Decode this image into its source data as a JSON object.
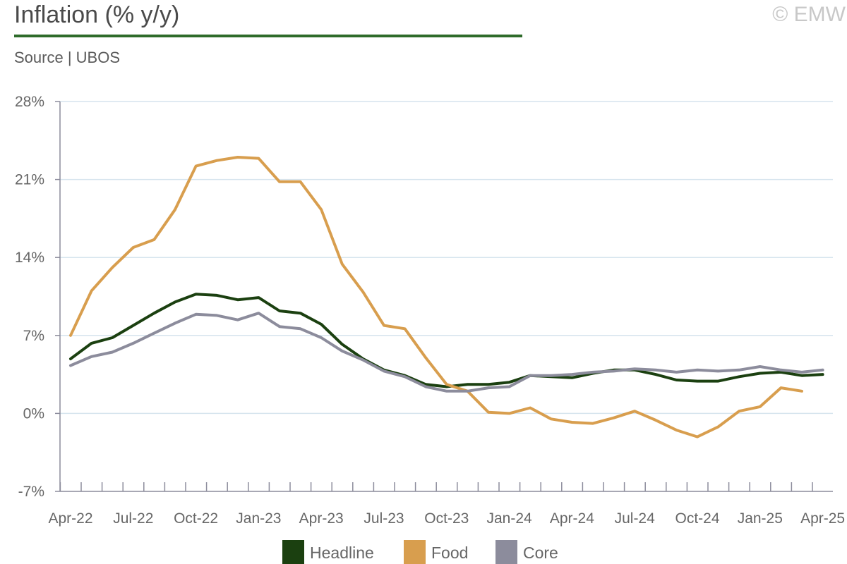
{
  "header": {
    "title": "Inflation (% y/y)",
    "source": "Source | UBOS",
    "copyright": "© EMW"
  },
  "colors": {
    "title_rule": "#2e6b2a",
    "axis": "#8c8c9c",
    "grid": "#d6e4ee"
  },
  "chart_data": {
    "type": "line",
    "title": "Inflation (% y/y)",
    "xlabel": "",
    "ylabel": "",
    "ylim": [
      -7,
      28
    ],
    "yticks": [
      "28%",
      "21%",
      "14%",
      "7%",
      "0%",
      "-7%"
    ],
    "ytick_values": [
      28,
      21,
      14,
      7,
      0,
      -7
    ],
    "xtick_labels": [
      "Apr-22",
      "Jul-22",
      "Oct-22",
      "Jan-23",
      "Apr-23",
      "Jul-23",
      "Oct-23",
      "Jan-24",
      "Apr-24",
      "Jul-24",
      "Oct-24",
      "Jan-25",
      "Apr-25"
    ],
    "x": [
      "Apr-22",
      "May-22",
      "Jun-22",
      "Jul-22",
      "Aug-22",
      "Sep-22",
      "Oct-22",
      "Nov-22",
      "Dec-22",
      "Jan-23",
      "Feb-23",
      "Mar-23",
      "Apr-23",
      "May-23",
      "Jun-23",
      "Jul-23",
      "Aug-23",
      "Sep-23",
      "Oct-23",
      "Nov-23",
      "Dec-23",
      "Jan-24",
      "Feb-24",
      "Mar-24",
      "Apr-24",
      "May-24",
      "Jun-24",
      "Jul-24",
      "Aug-24",
      "Sep-24",
      "Oct-24",
      "Nov-24",
      "Dec-24",
      "Jan-25",
      "Feb-25",
      "Mar-25",
      "Apr-25"
    ],
    "grid": true,
    "legend_position": "bottom",
    "series": [
      {
        "name": "Headline",
        "color": "#1b4010",
        "values": [
          4.9,
          6.3,
          6.8,
          7.9,
          9.0,
          10.0,
          10.7,
          10.6,
          10.2,
          10.4,
          9.2,
          9.0,
          8.0,
          6.2,
          4.9,
          3.9,
          3.4,
          2.6,
          2.4,
          2.6,
          2.6,
          2.8,
          3.4,
          3.3,
          3.2,
          3.6,
          3.9,
          3.9,
          3.5,
          3.0,
          2.9,
          2.9,
          3.3,
          3.6,
          3.7,
          3.4,
          3.5
        ]
      },
      {
        "name": "Food",
        "color": "#d89e4e",
        "values": [
          7.0,
          11.0,
          13.1,
          14.9,
          15.6,
          18.3,
          22.2,
          22.7,
          23.0,
          22.9,
          20.8,
          20.8,
          18.3,
          13.4,
          10.9,
          7.9,
          7.6,
          5.0,
          2.6,
          2.0,
          0.1,
          0.0,
          0.5,
          -0.5,
          -0.8,
          -0.9,
          -0.4,
          0.2,
          -0.6,
          -1.5,
          -2.1,
          -1.2,
          0.2,
          0.6,
          2.3,
          2.0,
          null
        ]
      },
      {
        "name": "Core",
        "color": "#8c8c9c",
        "values": [
          4.3,
          5.1,
          5.5,
          6.3,
          7.2,
          8.1,
          8.9,
          8.8,
          8.4,
          9.0,
          7.8,
          7.6,
          6.8,
          5.6,
          4.8,
          3.8,
          3.3,
          2.4,
          2.0,
          2.0,
          2.3,
          2.4,
          3.4,
          3.4,
          3.5,
          3.7,
          3.8,
          4.0,
          3.9,
          3.7,
          3.9,
          3.8,
          3.9,
          4.2,
          3.9,
          3.7,
          3.9
        ]
      }
    ]
  }
}
